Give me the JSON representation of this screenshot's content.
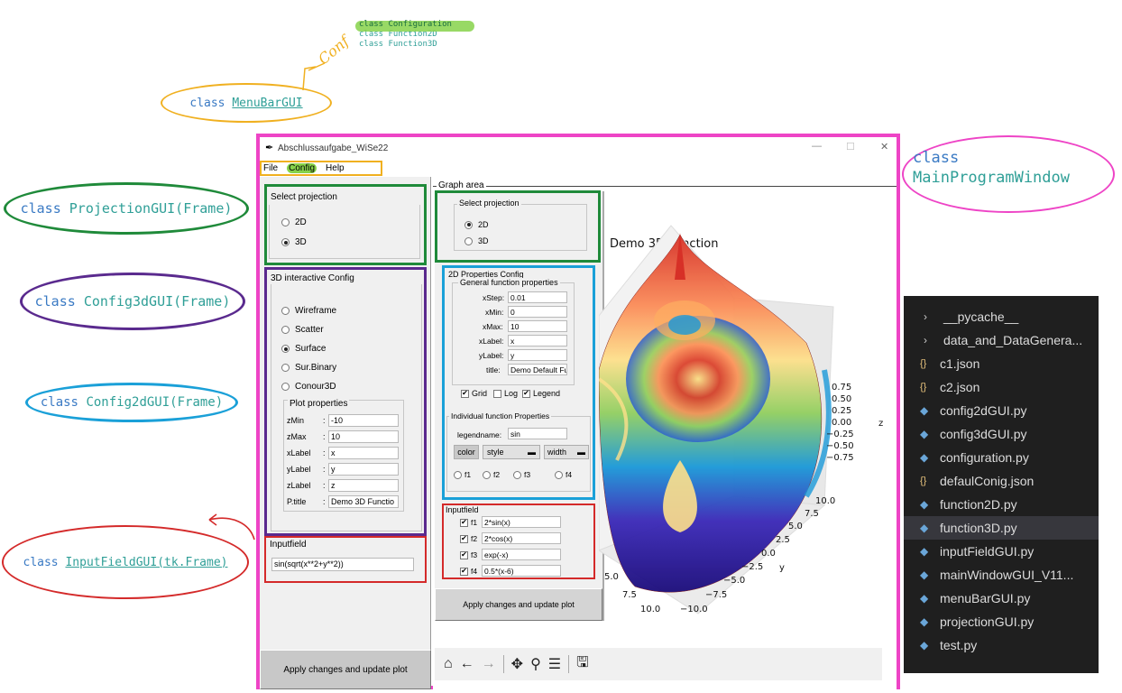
{
  "annotations": {
    "top_classes": [
      "class Configuration",
      "class Function2D",
      "class Function3D"
    ],
    "conf_scribble": "Conf",
    "menubar": {
      "kw": "class",
      "name": "MenuBarGUI"
    },
    "projection": {
      "kw": "class",
      "name": "ProjectionGUI(Frame)"
    },
    "config3d": {
      "kw": "class",
      "name": "Config3dGUI(Frame)"
    },
    "config2d": {
      "kw": "class",
      "name": "Config2dGUI(Frame)"
    },
    "inputfield": {
      "kw": "class",
      "name": "InputFieldGUI(tk.Frame)"
    },
    "mainwindow": {
      "kw": "class",
      "name_line1": "class",
      "name_line2": "MainProgramWindow"
    }
  },
  "window": {
    "title": "Abschlussaufgabe_WiSe22",
    "menu": [
      "File",
      "Config",
      "Help"
    ],
    "controls": {
      "minimize": "—",
      "maximize": "☐",
      "close": "✕"
    }
  },
  "left_panel": {
    "projection": {
      "title": "Select projection",
      "options": [
        "2D",
        "3D"
      ],
      "selected": "3D"
    },
    "config3d": {
      "title": "3D interactive Config",
      "options": [
        "Wireframe",
        "Scatter",
        "Surface",
        "Sur.Binary",
        "Conour3D"
      ],
      "selected": "Surface",
      "plot_props_title": "Plot properties",
      "props": [
        {
          "label": "zMin",
          "sep": ":",
          "value": "-10"
        },
        {
          "label": "zMax",
          "sep": ":",
          "value": "10"
        },
        {
          "label": "xLabel",
          "sep": ":",
          "value": "x"
        },
        {
          "label": "yLabel",
          "sep": ":",
          "value": "y"
        },
        {
          "label": "zLabel",
          "sep": ":",
          "value": "z"
        },
        {
          "label": "P.title",
          "sep": ":",
          "value": "Demo 3D Functio"
        }
      ]
    },
    "inputfield": {
      "title": "Inputfield",
      "value": "sin(sqrt(x**2+y**2))"
    },
    "apply_label": "Apply changes and update plot"
  },
  "graph_area": {
    "title": "Graph area",
    "projection": {
      "title": "Select projection",
      "options": [
        "2D",
        "3D"
      ],
      "selected": "2D"
    },
    "config2d": {
      "title": "2D Properties Config",
      "general_title": "General function properties",
      "props": [
        {
          "label": "xStep:",
          "value": "0.01"
        },
        {
          "label": "xMin:",
          "value": "0"
        },
        {
          "label": "xMax:",
          "value": "10"
        },
        {
          "label": "xLabel:",
          "value": "x"
        },
        {
          "label": "yLabel:",
          "value": "y"
        },
        {
          "label": "title:",
          "value": "Demo Default Fu"
        }
      ],
      "checks": [
        {
          "label": "Grid",
          "checked": true
        },
        {
          "label": "Log",
          "checked": false
        },
        {
          "label": "Legend",
          "checked": true
        }
      ],
      "individual_title": "Individual function Properties",
      "legendname_label": "legendname:",
      "legendname_value": "sin",
      "color_btn": "color",
      "style_btn": "style",
      "width_btn": "width",
      "funcs": [
        "f1",
        "f2",
        "f3",
        "f4"
      ]
    },
    "inputfield": {
      "title": "Inputfield",
      "rows": [
        {
          "label": "f1",
          "value": "2*sin(x)",
          "checked": true
        },
        {
          "label": "f2",
          "value": "2*cos(x)",
          "checked": true
        },
        {
          "label": "f3",
          "value": "exp(-x)",
          "checked": true
        },
        {
          "label": "f4",
          "value": "0.5*(x-6)",
          "checked": true
        }
      ]
    },
    "apply_label": "Apply changes and update plot",
    "toolbar": [
      "home-icon",
      "back-icon",
      "forward-icon",
      "pan-icon",
      "zoom-icon",
      "configure-icon",
      "save-icon"
    ],
    "toolbar_glyphs": [
      "⌂",
      "←",
      "→",
      "✥",
      "⚲",
      "☰",
      "🖫"
    ]
  },
  "plot": {
    "title": "Demo 3D Function",
    "z_ticks": [
      "0.75",
      "0.50",
      "0.25",
      "0.00",
      "−0.25",
      "−0.50",
      "−0.75"
    ],
    "z_label": "z",
    "y_ticks": [
      "10.0",
      "7.5",
      "5.0",
      "2.5",
      "0.0",
      "−2.5",
      "−5.0",
      "−7.5",
      "−10.0"
    ],
    "y_label": "y",
    "x_ticks": [
      "5.0",
      "7.5",
      "10.0"
    ]
  },
  "explorer": {
    "items": [
      {
        "icon": "chevron",
        "glyph": "›",
        "label": "__pycache__"
      },
      {
        "icon": "chevron",
        "glyph": "›",
        "label": "data_and_DataGenera..."
      },
      {
        "icon": "json",
        "glyph": "{}",
        "label": "c1.json"
      },
      {
        "icon": "json",
        "glyph": "{}",
        "label": "c2.json"
      },
      {
        "icon": "python",
        "glyph": "◆",
        "label": "config2dGUI.py"
      },
      {
        "icon": "python",
        "glyph": "◆",
        "label": "config3dGUI.py"
      },
      {
        "icon": "python",
        "glyph": "◆",
        "label": "configuration.py"
      },
      {
        "icon": "json",
        "glyph": "{}",
        "label": "defaulConig.json"
      },
      {
        "icon": "python",
        "glyph": "◆",
        "label": "function2D.py"
      },
      {
        "icon": "python",
        "glyph": "◆",
        "label": "function3D.py"
      },
      {
        "icon": "python",
        "glyph": "◆",
        "label": "inputFieldGUI.py"
      },
      {
        "icon": "python",
        "glyph": "◆",
        "label": "mainWindowGUI_V11..."
      },
      {
        "icon": "python",
        "glyph": "◆",
        "label": "menuBarGUI.py"
      },
      {
        "icon": "python",
        "glyph": "◆",
        "label": "projectionGUI.py"
      },
      {
        "icon": "python",
        "glyph": "◆",
        "label": "test.py"
      }
    ],
    "selected": "function3D.py"
  },
  "colors": {
    "magenta": "#ee44c6",
    "green": "#1f8a3a",
    "purple": "#5a2a8e",
    "blue": "#1aa0d8",
    "red": "#d42a2a",
    "orange": "#f0b020",
    "vscode_bg": "#1f1f1f"
  }
}
